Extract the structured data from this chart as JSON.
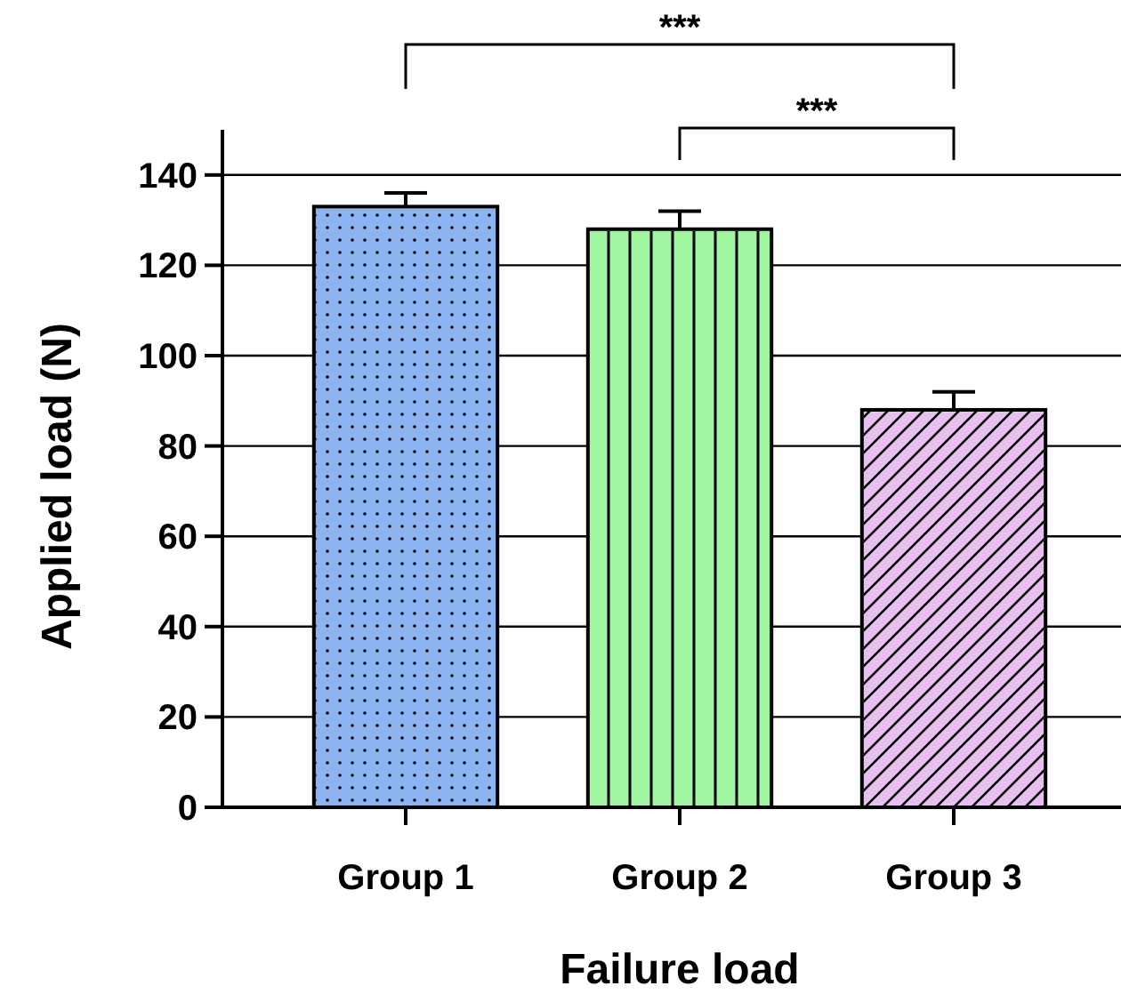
{
  "chart_data": {
    "type": "bar",
    "xlabel": "Failure load",
    "ylabel": "Applied load (N)",
    "categories": [
      "Group 1",
      "Group 2",
      "Group 3"
    ],
    "values": [
      133,
      128,
      88
    ],
    "errors": [
      3,
      4,
      4
    ],
    "colors": [
      "#8cb4f0",
      "#a0f5a0",
      "#e8c0f0"
    ],
    "ylim": [
      0,
      150
    ],
    "yticks": [
      0,
      20,
      40,
      60,
      80,
      100,
      120,
      140
    ],
    "grid": "y",
    "annotations": [
      "***",
      "***"
    ]
  }
}
